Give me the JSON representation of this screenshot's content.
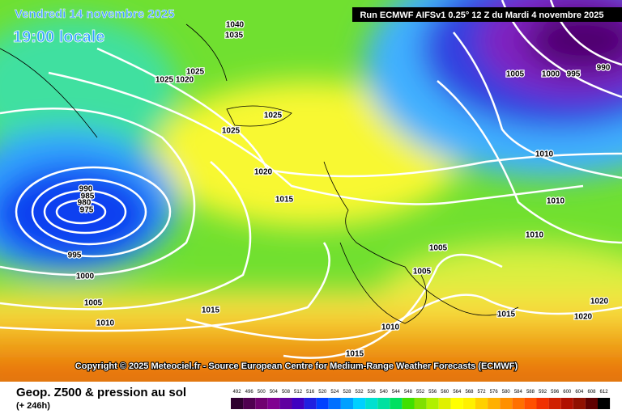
{
  "header": {
    "date": "Vendredi 14 novembre 2025",
    "time": "19:00 locale",
    "run": "Run ECMWF AIFSv1 0.25° 12 Z du Mardi 4 novembre 2025"
  },
  "isobar_labels": [
    "1040",
    "1035",
    "1025",
    "1025",
    "1020",
    "1025",
    "1025",
    "1020",
    "1015",
    "990",
    "985",
    "980",
    "975",
    "995",
    "1000",
    "1005",
    "1010",
    "1015",
    "1010",
    "1015",
    "1005",
    "1005",
    "1015",
    "1020",
    "1020",
    "1010",
    "1010",
    "1010",
    "1005",
    "1000",
    "995",
    "990"
  ],
  "copyright": "Copyright © 2025 Meteociel.fr - Source European Centre for Medium-Range Weather Forecasts (ECMWF)",
  "footer": {
    "title": "Geop. Z500 & pression au sol",
    "lead": "(+ 246h)"
  },
  "scale_labels": [
    492,
    496,
    500,
    504,
    508,
    512,
    516,
    520,
    524,
    528,
    532,
    536,
    540,
    544,
    548,
    552,
    556,
    560,
    564,
    568,
    572,
    576,
    580,
    584,
    588,
    592,
    596,
    600,
    604,
    608,
    612
  ]
}
